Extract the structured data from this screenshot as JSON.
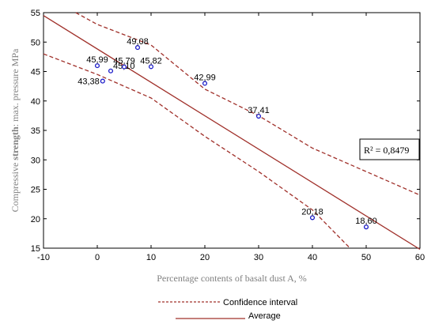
{
  "chart_data": {
    "type": "scatter",
    "xlabel": "Percentage contents of basalt dust A, %",
    "ylabel_parts": [
      "Compressive ",
      "strength",
      ": max. pressure MPa"
    ],
    "xlim": [
      -10,
      60
    ],
    "ylim": [
      15,
      55
    ],
    "x_ticks": [
      -10,
      0,
      10,
      20,
      30,
      40,
      50,
      60
    ],
    "y_ticks": [
      15,
      20,
      25,
      30,
      35,
      40,
      45,
      50,
      55
    ],
    "grid": false,
    "points": [
      {
        "x": 0,
        "y": 45.99,
        "label": "45,99",
        "label_pos": "above"
      },
      {
        "x": 1,
        "y": 43.38,
        "label": "43,38",
        "label_pos": "left"
      },
      {
        "x": 2.5,
        "y": 45.1,
        "label": "45,10",
        "label_pos": "right"
      },
      {
        "x": 5,
        "y": 45.79,
        "label": "45,79",
        "label_pos": "above"
      },
      {
        "x": 7.5,
        "y": 49.08,
        "label": "49,08",
        "label_pos": "above"
      },
      {
        "x": 10,
        "y": 45.82,
        "label": "45,82",
        "label_pos": "above"
      },
      {
        "x": 20,
        "y": 42.99,
        "label": "42,99",
        "label_pos": "above"
      },
      {
        "x": 30,
        "y": 37.41,
        "label": "37,41",
        "label_pos": "above"
      },
      {
        "x": 40,
        "y": 20.18,
        "label": "20,18",
        "label_pos": "above"
      },
      {
        "x": 50,
        "y": 18.6,
        "label": "18,60",
        "label_pos": "above"
      }
    ],
    "regression": {
      "line": [
        [
          -10,
          54.5
        ],
        [
          60,
          14.8
        ]
      ],
      "upper": [
        [
          -4,
          55
        ],
        [
          0,
          53
        ],
        [
          10,
          49.5
        ],
        [
          20,
          42
        ],
        [
          30,
          37.5
        ],
        [
          40,
          32
        ],
        [
          50,
          28
        ],
        [
          60,
          24
        ]
      ],
      "lower": [
        [
          -10,
          48
        ],
        [
          0,
          44.5
        ],
        [
          10,
          40.5
        ],
        [
          20,
          34
        ],
        [
          30,
          28
        ],
        [
          40,
          21.5
        ],
        [
          47,
          15
        ]
      ]
    },
    "r2_label": "R² = 0,8479",
    "legend": [
      {
        "label": "Confidence interval",
        "style": "dashed"
      },
      {
        "label": "Average",
        "style": "solid"
      }
    ],
    "colors": {
      "line": "#a0302a",
      "point": "#1a1ac8"
    }
  }
}
